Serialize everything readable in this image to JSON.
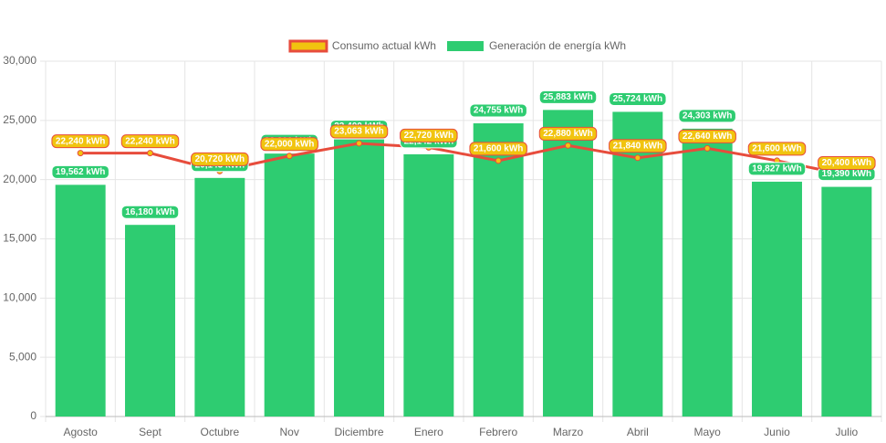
{
  "chart_data": {
    "type": "bar",
    "categories": [
      "Agosto",
      "Sept",
      "Octubre",
      "Nov",
      "Diciembre",
      "Enero",
      "Febrero",
      "Marzo",
      "Abril",
      "Mayo",
      "Junio",
      "Julio"
    ],
    "series": [
      {
        "name": "Consumo actual kWh",
        "type": "line",
        "color": "#e74c3c",
        "point_color": "#f1c40f",
        "values": [
          22240,
          22240,
          20720,
          22000,
          23063,
          22720,
          21600,
          22880,
          21840,
          22640,
          21600,
          20400
        ],
        "value_labels": [
          "22,240 kWh",
          "22,240 kWh",
          "20,720 kWh",
          "22,000 kWh",
          "23,063 kWh",
          "22,720 kWh",
          "21,600 kWh",
          "22,880 kWh",
          "21,840 kWh",
          "22,640 kWh",
          "21,600 kWh",
          "20,400 kWh"
        ]
      },
      {
        "name": "Generación de energía kWh",
        "type": "bar",
        "color": "#2ecc71",
        "values": [
          19562,
          16180,
          20143,
          22200,
          23400,
          22142,
          24755,
          25883,
          25724,
          24303,
          19827,
          19390
        ],
        "value_labels": [
          "19,562 kWh",
          "16,180 kWh",
          "20,143 kWh",
          "22,200 kWh",
          "23,400 kWh",
          "22,142 kWh",
          "24,755 kWh",
          "25,883 kWh",
          "25,724 kWh",
          "24,303 kWh",
          "19,827 kWh",
          "19,390 kWh"
        ]
      }
    ],
    "ylim": [
      0,
      30000
    ],
    "yticks": [
      0,
      {
        "value": 5000,
        "label": "5,000"
      },
      {
        "value": 10000,
        "label": "10,000"
      },
      {
        "value": 15000,
        "label": "15,000"
      },
      {
        "value": 20000,
        "label": "20,000"
      },
      {
        "value": 25000,
        "label": "25,000"
      },
      {
        "value": 30000,
        "label": "30,000"
      }
    ],
    "grid": true
  }
}
